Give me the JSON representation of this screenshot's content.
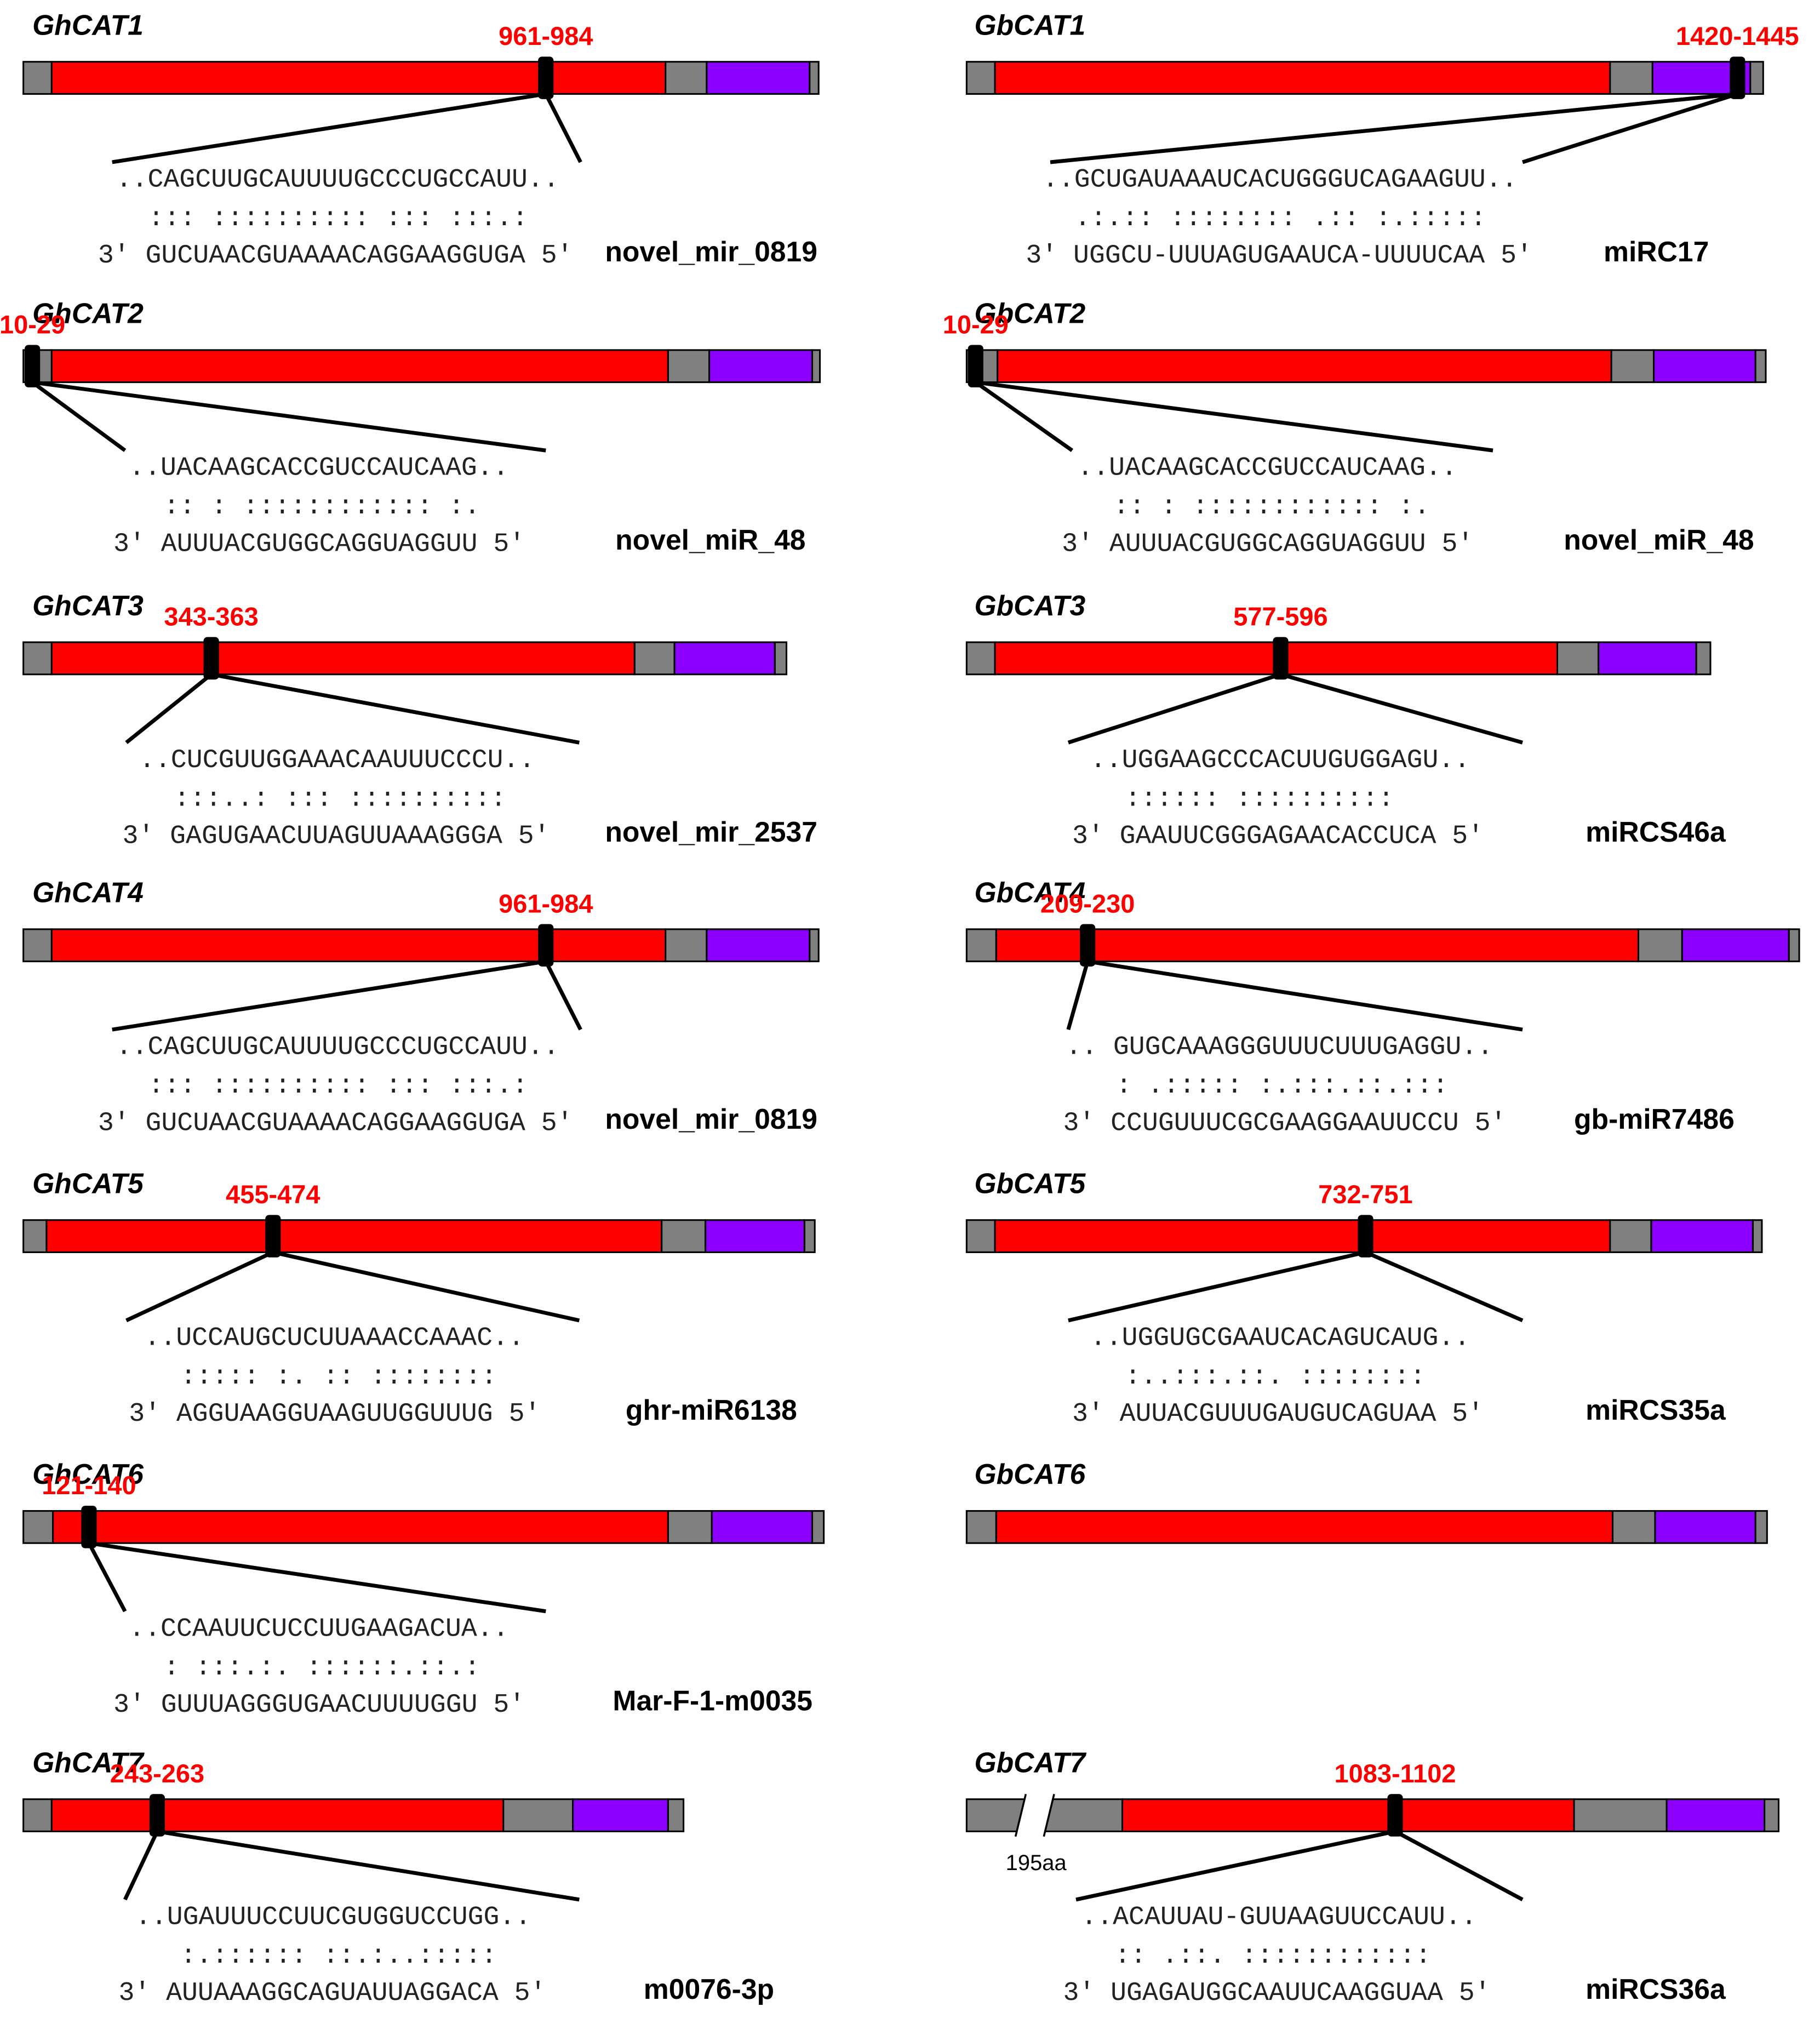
{
  "panels": [
    {
      "gene": "GhCAT1",
      "site": "961-984",
      "target": "..CAGCUUGCAUUUUGCCCUGCCAUU..",
      "match": "::: :::::::::: ::: :::.:",
      "mirna": "3′ GUCUAACGUAAAACAGGAAGGUGA 5′",
      "name": "novel_mir_0819"
    },
    {
      "gene": "GhCAT2",
      "site": "10-29",
      "target": "..UACAAGCACCGUCCAUCAAG..",
      "match": ":: : :::::::::::: :.",
      "mirna": "3′ AUUUACGUGGCAGGUAGGUU 5′",
      "name": "novel_miR_48"
    },
    {
      "gene": "GhCAT3",
      "site": "343-363",
      "target": "..CUCGUUGGAAACAAUUUCCCU..",
      "match": ":::..: ::: ::::::::::",
      "mirna": "3′ GAGUGAACUUAGUUAAAGGGA 5′",
      "name": "novel_mir_2537"
    },
    {
      "gene": "GhCAT4",
      "site": "961-984",
      "target": "..CAGCUUGCAUUUUGCCCUGCCAUU..",
      "match": "::: :::::::::: ::: :::.:",
      "mirna": "3′ GUCUAACGUAAAACAGGAAGGUGA 5′",
      "name": "novel_mir_0819"
    },
    {
      "gene": "GhCAT5",
      "site": "455-474",
      "target": "..UCCAUGCUCUUAAACCAAAC..",
      "match": "::::: :. :: ::::::::",
      "mirna": "3′ AGGUAAGGUAAGUUGGUUUG 5′",
      "name": "ghr-miR6138"
    },
    {
      "gene": "GhCAT6",
      "site": "121-140",
      "target": "..CCAAUUCUCCUUGAAGACUA..",
      "match": ": :::.:. ::::::.::.:",
      "mirna": "3′ GUUUAGGGUGAACUUUUGGU 5′",
      "name": "Mar-F-1-m0035"
    },
    {
      "gene": "GhCAT7",
      "site": "243-263",
      "target": "..UGAUUUCCUUCGUGGUCCUGG..",
      "match": ":.:::::: ::.:..:::::",
      "mirna": "3′ AUUAAAGGCAGUAUUAGGACA 5′",
      "name": "m0076-3p"
    },
    {
      "gene": "GbCAT1",
      "site": "1420-1445",
      "target": "..GCUGAUAAAUCACUGGGUCAGAAGUU..",
      "match": ".:.:: :::::::: .:: :.:::::",
      "mirna": "3′ UGGCU-UUUAGUGAAUCA-UUUUCAA 5′",
      "name": "miRC17"
    },
    {
      "gene": "GbCAT2",
      "site": "10-29",
      "target": "..UACAAGCACCGUCCAUCAAG..",
      "match": ":: : :::::::::::: :.",
      "mirna": "3′ AUUUACGUGGCAGGUAGGUU 5′",
      "name": "novel_miR_48"
    },
    {
      "gene": "GbCAT3",
      "site": "577-596",
      "target": "..UGGAAGCCCACUUGUGGAGU..",
      "match": ":::::: ::::::::::",
      "mirna": "3′ GAAUUCGGGAGAACACCUCA 5′",
      "name": "miRCS46a"
    },
    {
      "gene": "GbCAT4",
      "site": "209-230",
      "target": ".. GUGCAAAGGGUUUCUUUGAGGU..",
      "match": ": .::::: :.:::.::.:::",
      "mirna": "3′ CCUGUUUCGCGAAGGAAUUCCU 5′",
      "name": "gb-miR7486"
    },
    {
      "gene": "GbCAT5",
      "site": "732-751",
      "target": "..UGGUGCGAAUCACAGUCAUG..",
      "match": ":..:::.::. ::::::::",
      "mirna": "3′ AUUACGUUUGAUGUCAGUAA 5′",
      "name": "miRCS35a"
    },
    {
      "gene": "GbCAT6"
    },
    {
      "gene": "GbCAT7",
      "site": "1083-1102",
      "target": "..ACAUUAU-GUUAAGUUCCAUU..",
      "match": ":: .::. ::::::::::::",
      "mirna": "3′ UGAGAUGGCAAUUCAAGGUAA 5′",
      "name": "miRCS36a",
      "break_label": "195aa"
    }
  ]
}
